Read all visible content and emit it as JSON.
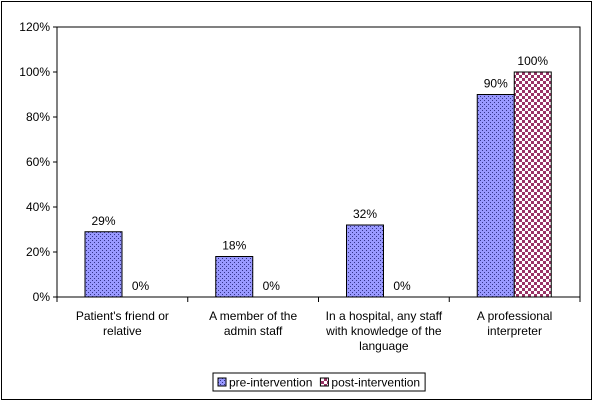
{
  "chart_data": {
    "type": "bar",
    "categories": [
      [
        "Patient's friend or",
        "relative"
      ],
      [
        "A member of the",
        "admin staff"
      ],
      [
        "In a hospital, any staff",
        "with knowledge of the",
        "language"
      ],
      [
        "A professional",
        "interpreter"
      ]
    ],
    "series": [
      {
        "name": "pre-intervention",
        "values": [
          29,
          18,
          32,
          90
        ],
        "labels": [
          "29%",
          "18%",
          "32%",
          "90%"
        ],
        "color": "#9999ff",
        "pattern": "dots"
      },
      {
        "name": "post-intervention",
        "values": [
          0,
          0,
          0,
          100
        ],
        "labels": [
          "0%",
          "0%",
          "0%",
          "100%"
        ],
        "color": "#993366",
        "pattern": "checker"
      }
    ],
    "yticks": [
      "0%",
      "20%",
      "40%",
      "60%",
      "80%",
      "100%",
      "120%"
    ],
    "ylim": [
      0,
      120
    ],
    "grid": false,
    "legend": "bottom"
  }
}
